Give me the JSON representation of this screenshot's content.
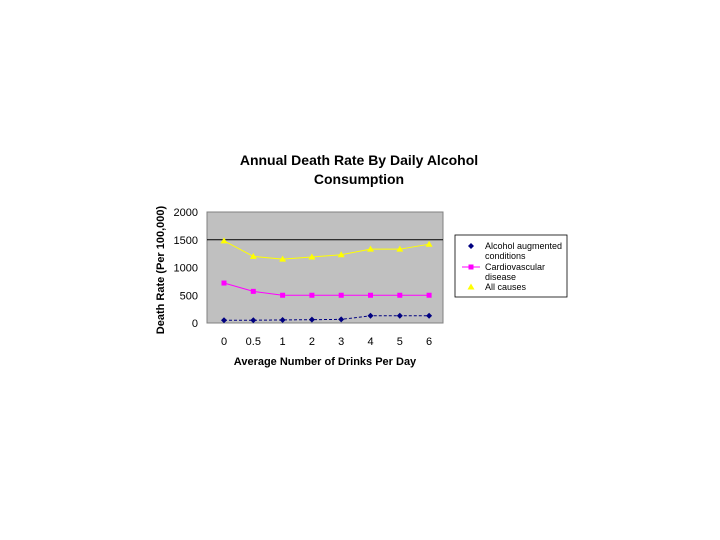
{
  "chart_data": {
    "type": "line",
    "title_lines": [
      "Annual Death Rate By Daily Alcohol",
      "Consumption"
    ],
    "xlabel": "Average Number of Drinks Per Day",
    "ylabel": "Death Rate (Per 100,000)",
    "categories": [
      "0",
      "0.5",
      "1",
      "2",
      "3",
      "4",
      "5",
      "6"
    ],
    "ylim": [
      0,
      2000
    ],
    "yticks": [
      0,
      500,
      1000,
      1500,
      2000
    ],
    "grid": "horizontal at 1500",
    "legend_position": "right",
    "plot_background": "#c0c0c0",
    "series": [
      {
        "name_lines": [
          "Alcohol augmented",
          "conditions"
        ],
        "color": "#000080",
        "marker": "diamond",
        "values": [
          50,
          50,
          55,
          60,
          65,
          130,
          130,
          130
        ]
      },
      {
        "name_lines": [
          "Cardiovascular",
          "disease"
        ],
        "color": "#ff00ff",
        "marker": "square",
        "values": [
          720,
          570,
          500,
          500,
          500,
          500,
          500,
          500
        ]
      },
      {
        "name_lines": [
          "All causes"
        ],
        "color": "#ffff00",
        "marker": "triangle",
        "values": [
          1480,
          1200,
          1150,
          1190,
          1230,
          1330,
          1330,
          1420
        ]
      }
    ]
  }
}
